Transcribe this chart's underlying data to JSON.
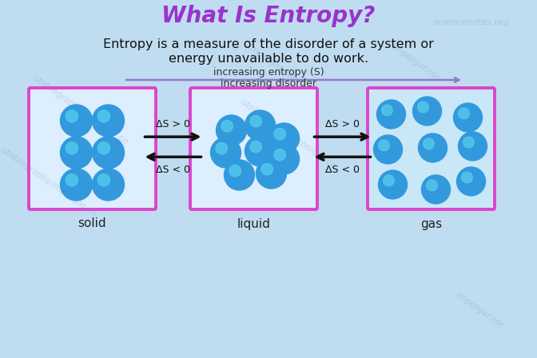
{
  "title": "What Is Entropy?",
  "title_color": "#9933cc",
  "title_fontsize": 20,
  "subtitle_line1": "Entropy is a measure of the disorder of a system or",
  "subtitle_line2": "energy unavailable to do work.",
  "subtitle_fontsize": 11.5,
  "subtitle_color": "#111111",
  "entropy_label": "increasing entropy (S)",
  "disorder_label": "increasing disorder",
  "arrow_color": "#9977cc",
  "bg_color": "#c0dcf0",
  "box_border_color": "#dd44cc",
  "box_fill_solid": "#ddeeff",
  "box_fill_liquid": "#ddeeff",
  "box_fill_gas": "#c8e8f8",
  "particle_color_dark": "#1177cc",
  "particle_color_mid": "#3399dd",
  "particle_color_light": "#55ccee",
  "states": [
    "solid",
    "liquid",
    "gas"
  ],
  "delta_s_greater": "ΔS > 0",
  "delta_s_less": "ΔS < 0",
  "watermark_color": "#7799aa",
  "fig_w": 6.72,
  "fig_h": 4.48,
  "dpi": 100
}
